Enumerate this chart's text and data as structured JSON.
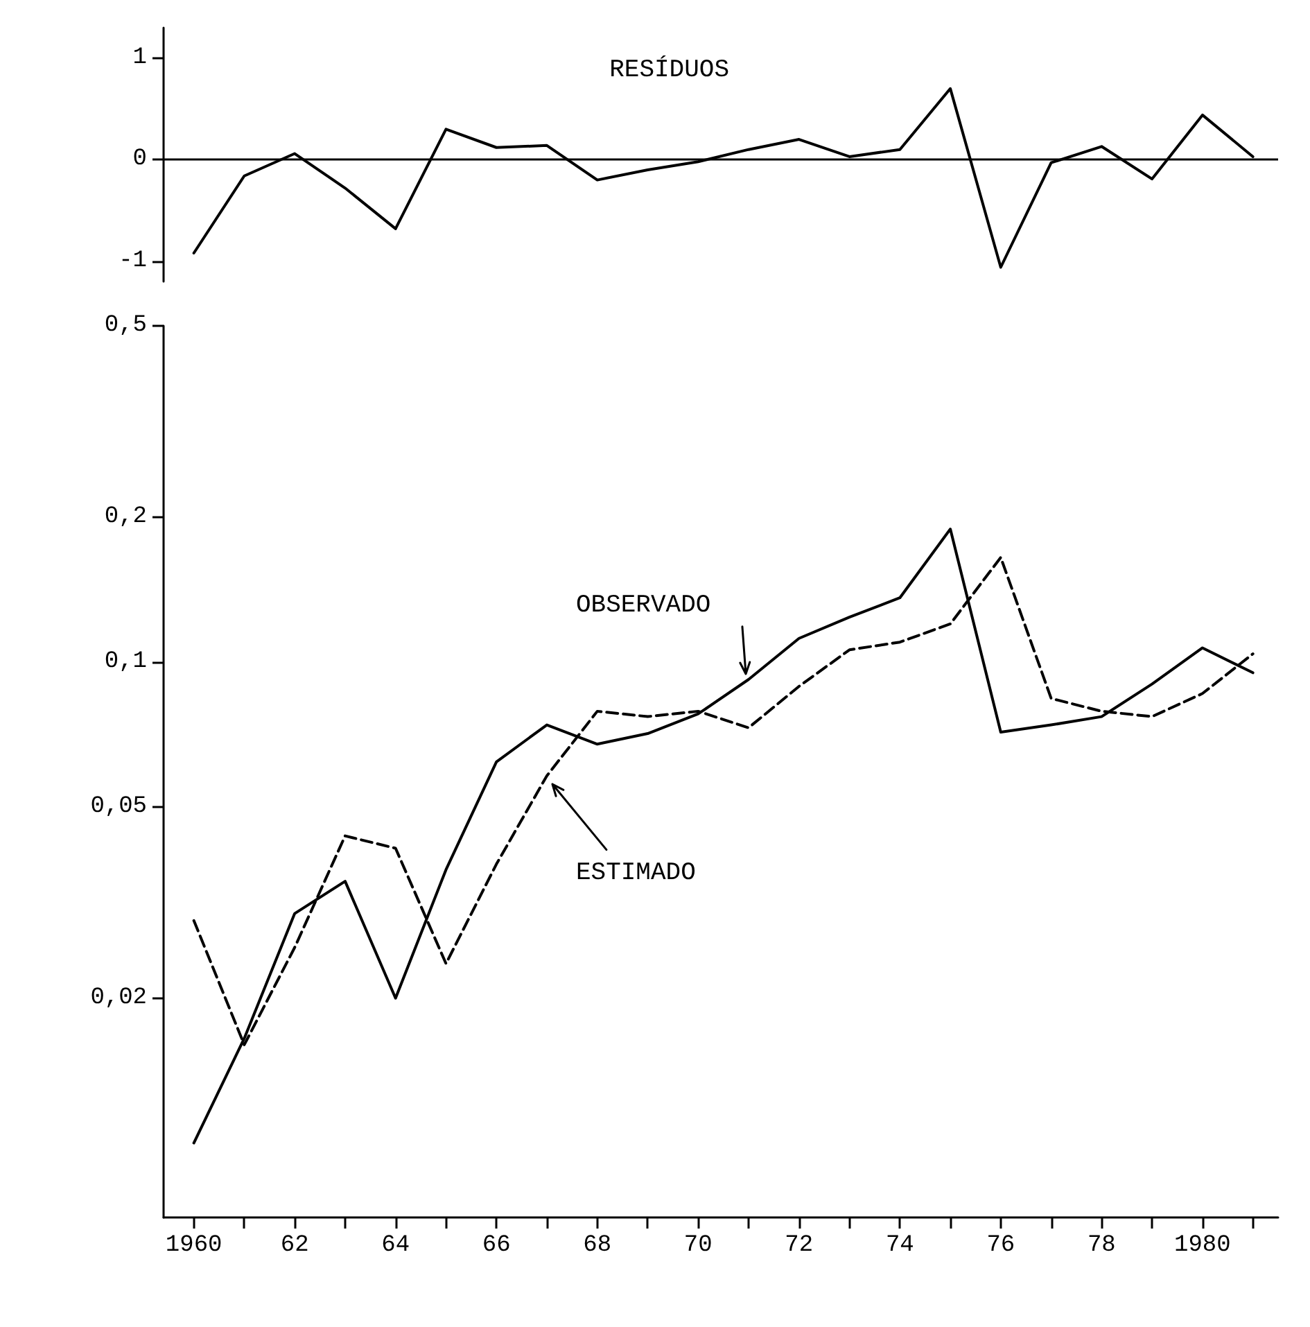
{
  "chart_data": [
    {
      "type": "line",
      "x": [
        1960,
        1961,
        1962,
        1963,
        1964,
        1965,
        1966,
        1967,
        1968,
        1969,
        1970,
        1971,
        1972,
        1973,
        1974,
        1975,
        1976,
        1977,
        1978,
        1979,
        1980,
        1981
      ],
      "series": [
        {
          "name": "RESÍDUOS",
          "color": "#000000",
          "values": [
            -0.92,
            -0.16,
            0.06,
            -0.28,
            -0.68,
            0.3,
            0.12,
            0.14,
            -0.2,
            -0.1,
            -0.02,
            0.1,
            0.2,
            0.03,
            0.1,
            0.7,
            -1.06,
            -0.03,
            0.13,
            -0.19,
            0.44,
            0.03
          ]
        }
      ],
      "xlim": [
        1959.4,
        1981.5
      ],
      "ylim": [
        -1.2,
        1.3
      ],
      "yticks": [
        1,
        0,
        -1
      ],
      "tick_labels": "y",
      "ref_lines": [
        {
          "axis": "y",
          "value": 0
        }
      ],
      "marker": "none",
      "line_style": "solid",
      "grid": false
    },
    {
      "type": "line",
      "x": [
        1960,
        1961,
        1962,
        1963,
        1964,
        1965,
        1966,
        1967,
        1968,
        1969,
        1970,
        1971,
        1972,
        1973,
        1974,
        1975,
        1976,
        1977,
        1978,
        1979,
        1980,
        1981
      ],
      "series": [
        {
          "name": "OBSERVADO",
          "color": "#000000",
          "line_style": "solid",
          "values": [
            0.01,
            0.0165,
            0.03,
            0.035,
            0.02,
            0.037,
            0.062,
            0.074,
            0.0675,
            0.071,
            0.078,
            0.092,
            0.112,
            0.124,
            0.136,
            0.189,
            0.0715,
            0.074,
            0.077,
            0.09,
            0.107,
            0.095
          ]
        },
        {
          "name": "ESTIMADO",
          "color": "#000000",
          "line_style": "dashed",
          "values": [
            0.029,
            0.016,
            0.0255,
            0.0435,
            0.041,
            0.0236,
            0.038,
            0.058,
            0.079,
            0.077,
            0.079,
            0.073,
            0.089,
            0.106,
            0.11,
            0.12,
            0.165,
            0.084,
            0.079,
            0.077,
            0.086,
            0.104
          ]
        }
      ],
      "xlim": [
        1959.4,
        1981.5
      ],
      "xticks": [
        1960,
        {
          "value": 1961,
          "label": null
        },
        {
          "value": 1962,
          "label": "62"
        },
        {
          "value": 1963,
          "label": null
        },
        {
          "value": 1964,
          "label": "64"
        },
        {
          "value": 1965,
          "label": null
        },
        {
          "value": 1966,
          "label": "66"
        },
        {
          "value": 1967,
          "label": null
        },
        {
          "value": 1968,
          "label": "68"
        },
        {
          "value": 1969,
          "label": null
        },
        {
          "value": 1970,
          "label": "70"
        },
        {
          "value": 1971,
          "label": null
        },
        {
          "value": 1972,
          "label": "72"
        },
        {
          "value": 1973,
          "label": null
        },
        {
          "value": 1974,
          "label": "74"
        },
        {
          "value": 1975,
          "label": null
        },
        {
          "value": 1976,
          "label": "76"
        },
        {
          "value": 1977,
          "label": null
        },
        {
          "value": 1978,
          "label": "78"
        },
        {
          "value": 1979,
          "label": null
        },
        1980,
        {
          "value": 1981,
          "label": null
        }
      ],
      "ylim": [
        0.007,
        0.5
      ],
      "log": "y",
      "yticks": [
        {
          "value": 0.5,
          "label": "0,5"
        },
        {
          "value": 0.2,
          "label": "0,2"
        },
        {
          "value": 0.1,
          "label": "0,1"
        },
        {
          "value": 0.05,
          "label": "0,05"
        },
        {
          "value": 0.02,
          "label": "0,02"
        }
      ],
      "marker": "none",
      "grid": false
    }
  ]
}
